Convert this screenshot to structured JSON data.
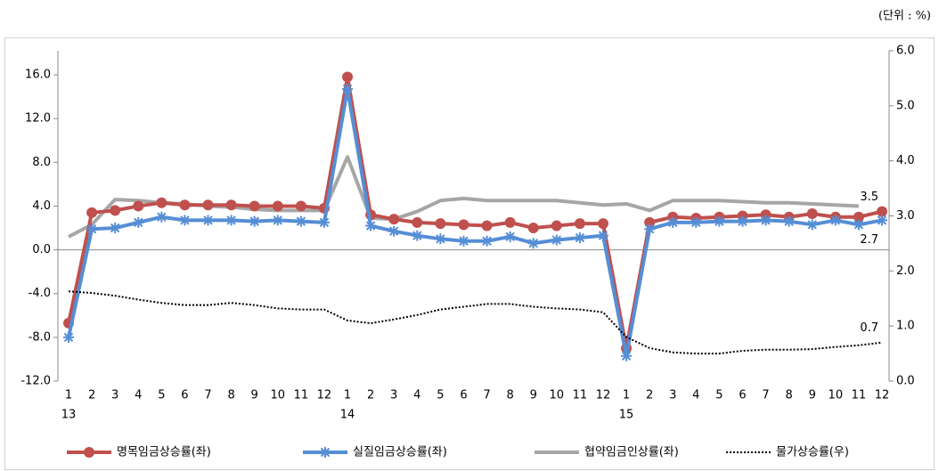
{
  "chart_data": {
    "type": "line",
    "unit_label": "(단위 : %)",
    "categories": [
      "1",
      "2",
      "3",
      "4",
      "5",
      "6",
      "7",
      "8",
      "9",
      "10",
      "11",
      "12",
      "1",
      "2",
      "3",
      "4",
      "5",
      "6",
      "7",
      "8",
      "9",
      "10",
      "11",
      "12",
      "1",
      "2",
      "3",
      "4",
      "5",
      "6",
      "7",
      "8",
      "9",
      "10",
      "11",
      "12"
    ],
    "category_groups": [
      "13",
      "14",
      "15"
    ],
    "ylim": [
      -12,
      18.2
    ],
    "yticks": [
      {
        "value": -12,
        "label": "-12.0"
      },
      {
        "value": -8,
        "label": "-8.0"
      },
      {
        "value": -4,
        "label": "-4.0"
      },
      {
        "value": 0,
        "label": "0.0"
      },
      {
        "value": 4,
        "label": "4.0"
      },
      {
        "value": 8,
        "label": "8.0"
      },
      {
        "value": 12,
        "label": "12.0"
      },
      {
        "value": 16,
        "label": "16.0"
      }
    ],
    "y2lim": [
      0,
      6
    ],
    "y2ticks": [
      {
        "value": 0,
        "label": "0.0"
      },
      {
        "value": 1,
        "label": "1.0"
      },
      {
        "value": 2,
        "label": "2.0"
      },
      {
        "value": 3,
        "label": "3.0"
      },
      {
        "value": 4,
        "label": "4.0"
      },
      {
        "value": 5,
        "label": "5.0"
      },
      {
        "value": 6,
        "label": "6.0"
      }
    ],
    "series": [
      {
        "name": "협약임금인상률(좌)",
        "color": "#a6a6a6",
        "style": "solid",
        "marker": "none",
        "values": [
          1.2,
          2.3,
          4.6,
          4.5,
          4.3,
          4.2,
          4.0,
          3.9,
          3.7,
          3.6,
          3.6,
          3.6,
          8.5,
          2.9,
          2.8,
          3.5,
          4.5,
          4.7,
          4.5,
          4.5,
          4.5,
          4.5,
          4.3,
          4.1,
          4.2,
          3.6,
          4.5,
          4.5,
          4.5,
          4.4,
          4.3,
          4.3,
          4.2,
          4.1,
          4.0,
          null
        ]
      },
      {
        "name": "명목임금상승률(좌)",
        "color": "#c0504d",
        "style": "solid",
        "marker": "circle",
        "values": [
          -6.7,
          3.4,
          3.6,
          4.0,
          4.3,
          4.1,
          4.1,
          4.1,
          4.0,
          4.0,
          4.0,
          3.8,
          15.8,
          3.2,
          2.8,
          2.5,
          2.4,
          2.3,
          2.2,
          2.5,
          2.0,
          2.2,
          2.4,
          2.4,
          -9.0,
          2.5,
          3.0,
          2.9,
          3.0,
          3.1,
          3.2,
          3.0,
          3.3,
          3.0,
          3.0,
          3.5
        ],
        "end_label": "3.5"
      },
      {
        "name": "실질임금상승률(좌)",
        "color": "#558ed5",
        "style": "solid",
        "marker": "star",
        "values": [
          -8.0,
          1.9,
          2.0,
          2.5,
          3.0,
          2.7,
          2.7,
          2.7,
          2.6,
          2.7,
          2.6,
          2.5,
          14.7,
          2.2,
          1.7,
          1.3,
          1.0,
          0.8,
          0.8,
          1.2,
          0.6,
          0.9,
          1.1,
          1.3,
          -9.7,
          1.9,
          2.5,
          2.5,
          2.6,
          2.6,
          2.7,
          2.6,
          2.3,
          2.7,
          2.3,
          2.7
        ],
        "end_label": "2.7"
      },
      {
        "name": "물가상승률(우)",
        "color": "#000000",
        "style": "dotted",
        "marker": "none",
        "axis": "y2",
        "values": [
          1.63,
          1.6,
          1.55,
          1.48,
          1.42,
          1.38,
          1.38,
          1.42,
          1.38,
          1.32,
          1.3,
          1.3,
          1.1,
          1.05,
          1.12,
          1.2,
          1.3,
          1.35,
          1.4,
          1.4,
          1.35,
          1.32,
          1.3,
          1.25,
          0.8,
          0.6,
          0.52,
          0.5,
          0.5,
          0.55,
          0.57,
          0.57,
          0.58,
          0.62,
          0.65,
          0.7
        ],
        "end_label": "0.7"
      }
    ],
    "legend_order": [
      1,
      2,
      0,
      3
    ]
  }
}
